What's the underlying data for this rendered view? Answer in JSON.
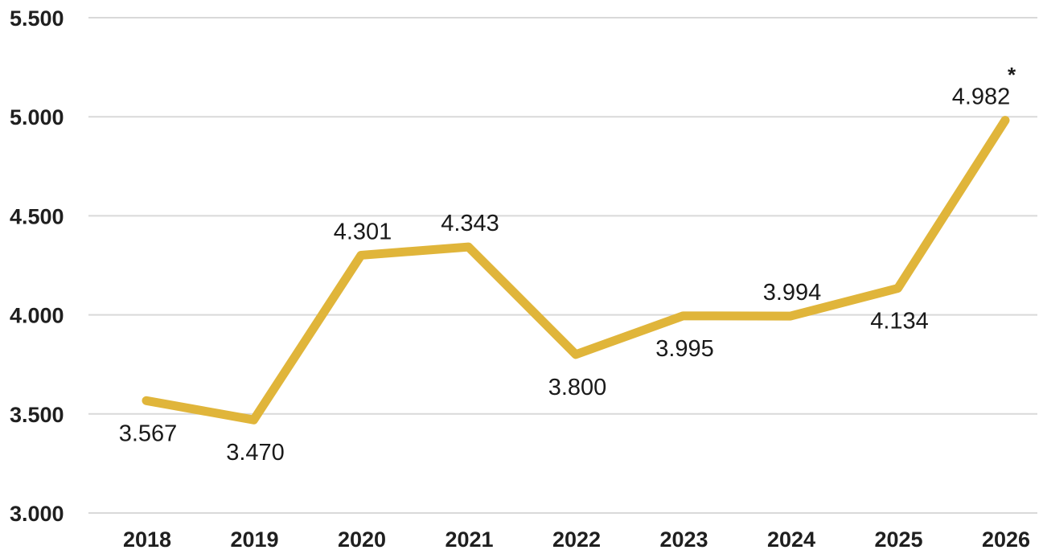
{
  "chart_data": {
    "type": "line",
    "title": "",
    "xlabel": "",
    "ylabel": "",
    "categories": [
      "2018",
      "2019",
      "2020",
      "2021",
      "2022",
      "2023",
      "2024",
      "2025",
      "2026"
    ],
    "series": [
      {
        "values": [
          3567,
          3470,
          4301,
          4343,
          3800,
          3995,
          3994,
          4134,
          4982
        ],
        "labels": [
          "3.567",
          "3.470",
          "4.301",
          "4.343",
          "3.800",
          "3.995",
          "3.994",
          "4.134",
          "4.982"
        ],
        "color": "#e0b53a"
      }
    ],
    "ylim": [
      3000,
      5500
    ],
    "yticks": [
      3000,
      3500,
      4000,
      4500,
      5000,
      5500
    ],
    "ytick_labels": [
      "3.000",
      "3.500",
      "4.000",
      "4.500",
      "5.000",
      "5.500"
    ],
    "grid": true,
    "legend": "none",
    "annotation": "*",
    "gridline_color": "#d9d9d9"
  }
}
